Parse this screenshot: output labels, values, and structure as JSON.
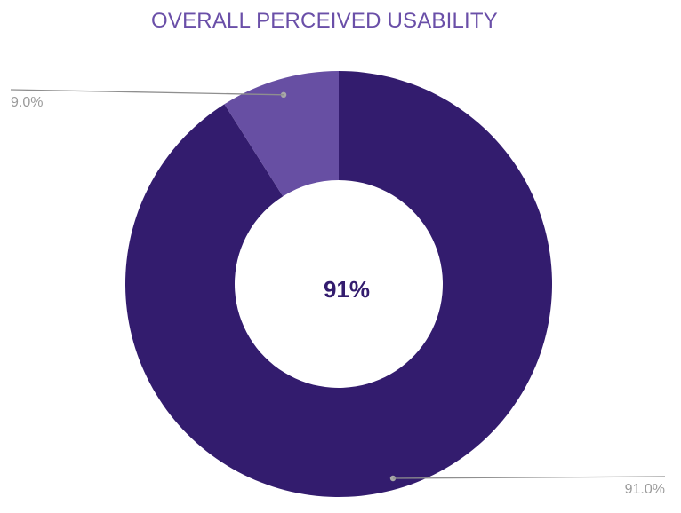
{
  "chart_data": {
    "type": "pie",
    "title": "OVERALL PERCEIVED USABILITY",
    "center_label": "91%",
    "donut": true,
    "slices": [
      {
        "label": "91.0%",
        "value": 91.0,
        "color": "#331c6e"
      },
      {
        "label": "9.0%",
        "value": 9.0,
        "color": "#674fa3"
      }
    ]
  }
}
